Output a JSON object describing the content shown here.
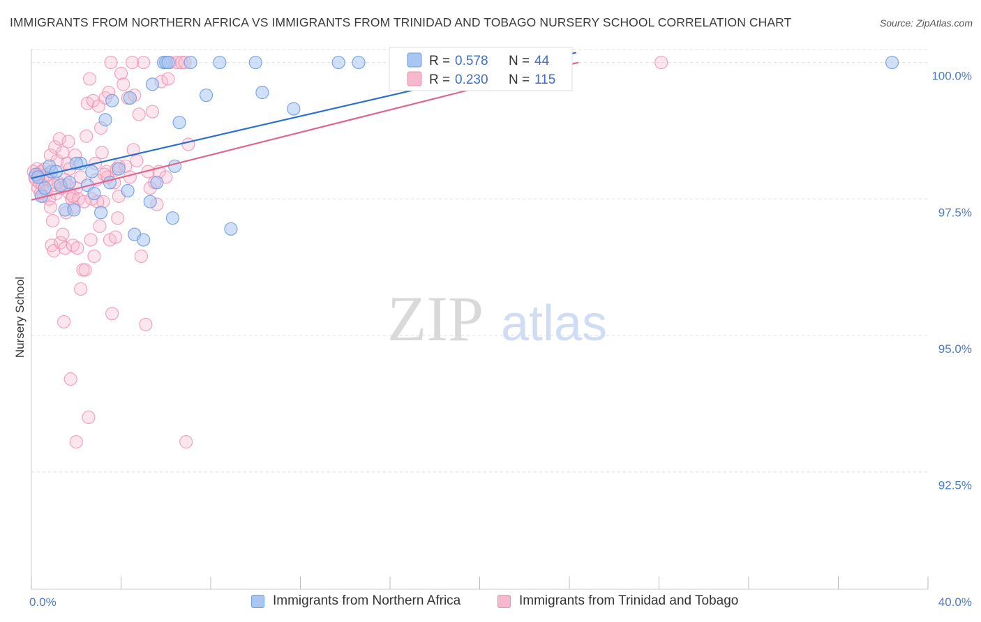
{
  "chart_data": {
    "type": "scatter",
    "title": "IMMIGRANTS FROM NORTHERN AFRICA VS IMMIGRANTS FROM TRINIDAD AND TOBAGO NURSERY SCHOOL CORRELATION CHART",
    "source": "Source: ZipAtlas.com",
    "ylabel": "Nursery School",
    "xlabel": "",
    "xlim": [
      0,
      40
    ],
    "ylim": [
      90.35,
      100.25
    ],
    "y_ticks": [
      {
        "value": 100,
        "label": "100.0%"
      },
      {
        "value": 97.5,
        "label": "97.5%"
      },
      {
        "value": 95,
        "label": "95.0%"
      },
      {
        "value": 92.5,
        "label": "92.5%"
      }
    ],
    "x_tick_labels": {
      "min": "0.0%",
      "max": "40.0%"
    },
    "watermark": {
      "zip": "ZIP",
      "atlas": "atlas"
    },
    "legend": {
      "r_label": "R =",
      "n_label": "N =",
      "entries": [
        {
          "r": "0.578",
          "n": "44"
        },
        {
          "r": "0.230",
          "n": "115"
        }
      ]
    },
    "colors": {
      "blue_fill": "#a9c6f2",
      "blue_stroke": "#6f9de0",
      "blue_line": "#2a6fd1",
      "pink_fill": "#f6b8cc",
      "pink_stroke": "#ee8fb0",
      "pink_line": "#e0668f",
      "grid": "#dddddd",
      "tick": "#4a7cc7"
    },
    "series": [
      {
        "name": "Immigrants from Northern Africa",
        "trend": {
          "x": [
            0,
            24.3
          ],
          "y": [
            97.88,
            100.18
          ]
        },
        "points": [
          [
            0.2,
            97.95
          ],
          [
            0.3,
            97.9
          ],
          [
            0.45,
            97.55
          ],
          [
            0.9,
            98.0
          ],
          [
            1.3,
            97.75
          ],
          [
            1.5,
            97.3
          ],
          [
            1.7,
            97.8
          ],
          [
            1.9,
            97.3
          ],
          [
            2.2,
            98.15
          ],
          [
            2.5,
            97.75
          ],
          [
            2.7,
            98.0
          ],
          [
            2.8,
            97.6
          ],
          [
            3.1,
            97.25
          ],
          [
            3.3,
            98.95
          ],
          [
            3.5,
            97.8
          ],
          [
            3.6,
            99.3
          ],
          [
            3.9,
            98.05
          ],
          [
            4.3,
            97.65
          ],
          [
            4.4,
            99.35
          ],
          [
            4.6,
            96.85
          ],
          [
            5.0,
            96.75
          ],
          [
            5.3,
            97.45
          ],
          [
            5.4,
            99.6
          ],
          [
            5.6,
            97.8
          ],
          [
            5.9,
            100.0
          ],
          [
            6.0,
            100.0
          ],
          [
            6.1,
            100.0
          ],
          [
            6.3,
            97.15
          ],
          [
            6.4,
            98.1
          ],
          [
            6.6,
            98.9
          ],
          [
            7.1,
            100.0
          ],
          [
            7.8,
            99.4
          ],
          [
            8.4,
            100.0
          ],
          [
            8.9,
            96.95
          ],
          [
            10.0,
            100.0
          ],
          [
            10.3,
            99.45
          ],
          [
            11.7,
            99.15
          ],
          [
            13.7,
            100.0
          ],
          [
            14.6,
            100.0
          ],
          [
            38.4,
            100.0
          ],
          [
            0.6,
            97.7
          ],
          [
            0.8,
            98.1
          ],
          [
            1.1,
            98.0
          ],
          [
            2.0,
            98.15
          ]
        ]
      },
      {
        "name": "Immigrants from Trinidad and Tobago",
        "trend": {
          "x": [
            0,
            24.4
          ],
          "y": [
            97.48,
            100.0
          ]
        },
        "points": [
          [
            0.1,
            98.0
          ],
          [
            0.15,
            97.9
          ],
          [
            0.2,
            97.85
          ],
          [
            0.25,
            98.05
          ],
          [
            0.3,
            97.95
          ],
          [
            0.3,
            97.7
          ],
          [
            0.35,
            97.8
          ],
          [
            0.4,
            97.6
          ],
          [
            0.45,
            98.0
          ],
          [
            0.5,
            97.9
          ],
          [
            0.5,
            97.75
          ],
          [
            0.55,
            97.55
          ],
          [
            0.6,
            98.05
          ],
          [
            0.65,
            97.65
          ],
          [
            0.7,
            97.95
          ],
          [
            0.75,
            97.85
          ],
          [
            0.8,
            97.5
          ],
          [
            0.85,
            98.3
          ],
          [
            0.9,
            96.65
          ],
          [
            0.95,
            97.1
          ],
          [
            1.0,
            97.75
          ],
          [
            1.0,
            96.55
          ],
          [
            1.05,
            98.45
          ],
          [
            1.1,
            97.6
          ],
          [
            1.15,
            98.2
          ],
          [
            1.2,
            97.8
          ],
          [
            1.25,
            98.6
          ],
          [
            1.3,
            96.7
          ],
          [
            1.35,
            97.7
          ],
          [
            1.4,
            98.35
          ],
          [
            1.4,
            96.85
          ],
          [
            1.45,
            95.25
          ],
          [
            1.5,
            97.85
          ],
          [
            1.5,
            96.6
          ],
          [
            1.55,
            97.25
          ],
          [
            1.6,
            98.15
          ],
          [
            1.6,
            97.75
          ],
          [
            1.65,
            98.55
          ],
          [
            1.7,
            97.6
          ],
          [
            1.75,
            94.2
          ],
          [
            1.8,
            97.5
          ],
          [
            1.85,
            96.65
          ],
          [
            1.9,
            97.35
          ],
          [
            1.95,
            98.3
          ],
          [
            2.0,
            93.05
          ],
          [
            2.0,
            97.7
          ],
          [
            2.05,
            96.6
          ],
          [
            2.1,
            97.5
          ],
          [
            2.2,
            95.85
          ],
          [
            2.2,
            97.9
          ],
          [
            2.3,
            96.2
          ],
          [
            2.35,
            97.45
          ],
          [
            2.4,
            96.2
          ],
          [
            2.45,
            98.65
          ],
          [
            2.5,
            99.25
          ],
          [
            2.55,
            93.5
          ],
          [
            2.6,
            99.7
          ],
          [
            2.65,
            96.75
          ],
          [
            2.7,
            97.5
          ],
          [
            2.75,
            99.3
          ],
          [
            2.8,
            96.45
          ],
          [
            2.85,
            98.15
          ],
          [
            2.9,
            97.85
          ],
          [
            3.0,
            99.2
          ],
          [
            3.05,
            97.0
          ],
          [
            3.1,
            98.8
          ],
          [
            3.15,
            98.35
          ],
          [
            3.2,
            97.45
          ],
          [
            3.3,
            99.35
          ],
          [
            3.35,
            98.0
          ],
          [
            3.4,
            97.9
          ],
          [
            3.45,
            99.45
          ],
          [
            3.5,
            96.75
          ],
          [
            3.55,
            100.0
          ],
          [
            3.6,
            95.4
          ],
          [
            3.7,
            97.8
          ],
          [
            3.75,
            96.8
          ],
          [
            3.8,
            98.05
          ],
          [
            3.85,
            97.15
          ],
          [
            3.9,
            98.1
          ],
          [
            3.9,
            97.55
          ],
          [
            4.0,
            99.8
          ],
          [
            4.1,
            99.6
          ],
          [
            4.2,
            98.1
          ],
          [
            4.3,
            99.35
          ],
          [
            4.4,
            97.9
          ],
          [
            4.5,
            100.0
          ],
          [
            4.55,
            98.4
          ],
          [
            4.6,
            99.4
          ],
          [
            4.7,
            98.2
          ],
          [
            4.8,
            99.05
          ],
          [
            4.9,
            96.45
          ],
          [
            5.0,
            100.0
          ],
          [
            5.1,
            95.2
          ],
          [
            5.2,
            98.0
          ],
          [
            5.3,
            97.7
          ],
          [
            5.4,
            99.1
          ],
          [
            5.5,
            97.8
          ],
          [
            5.6,
            97.4
          ],
          [
            5.7,
            98.0
          ],
          [
            5.8,
            99.65
          ],
          [
            6.0,
            97.9
          ],
          [
            6.1,
            99.7
          ],
          [
            6.2,
            100.0
          ],
          [
            6.5,
            100.0
          ],
          [
            6.7,
            100.0
          ],
          [
            6.85,
            100.0
          ],
          [
            6.9,
            93.05
          ],
          [
            7.0,
            98.5
          ],
          [
            1.85,
            97.55
          ],
          [
            2.95,
            97.45
          ],
          [
            3.25,
            97.95
          ],
          [
            0.85,
            97.35
          ],
          [
            1.7,
            98.05
          ],
          [
            28.1,
            100.0
          ]
        ]
      }
    ]
  },
  "bottom_legend": {
    "items": [
      "Immigrants from Northern Africa",
      "Immigrants from Trinidad and Tobago"
    ]
  }
}
